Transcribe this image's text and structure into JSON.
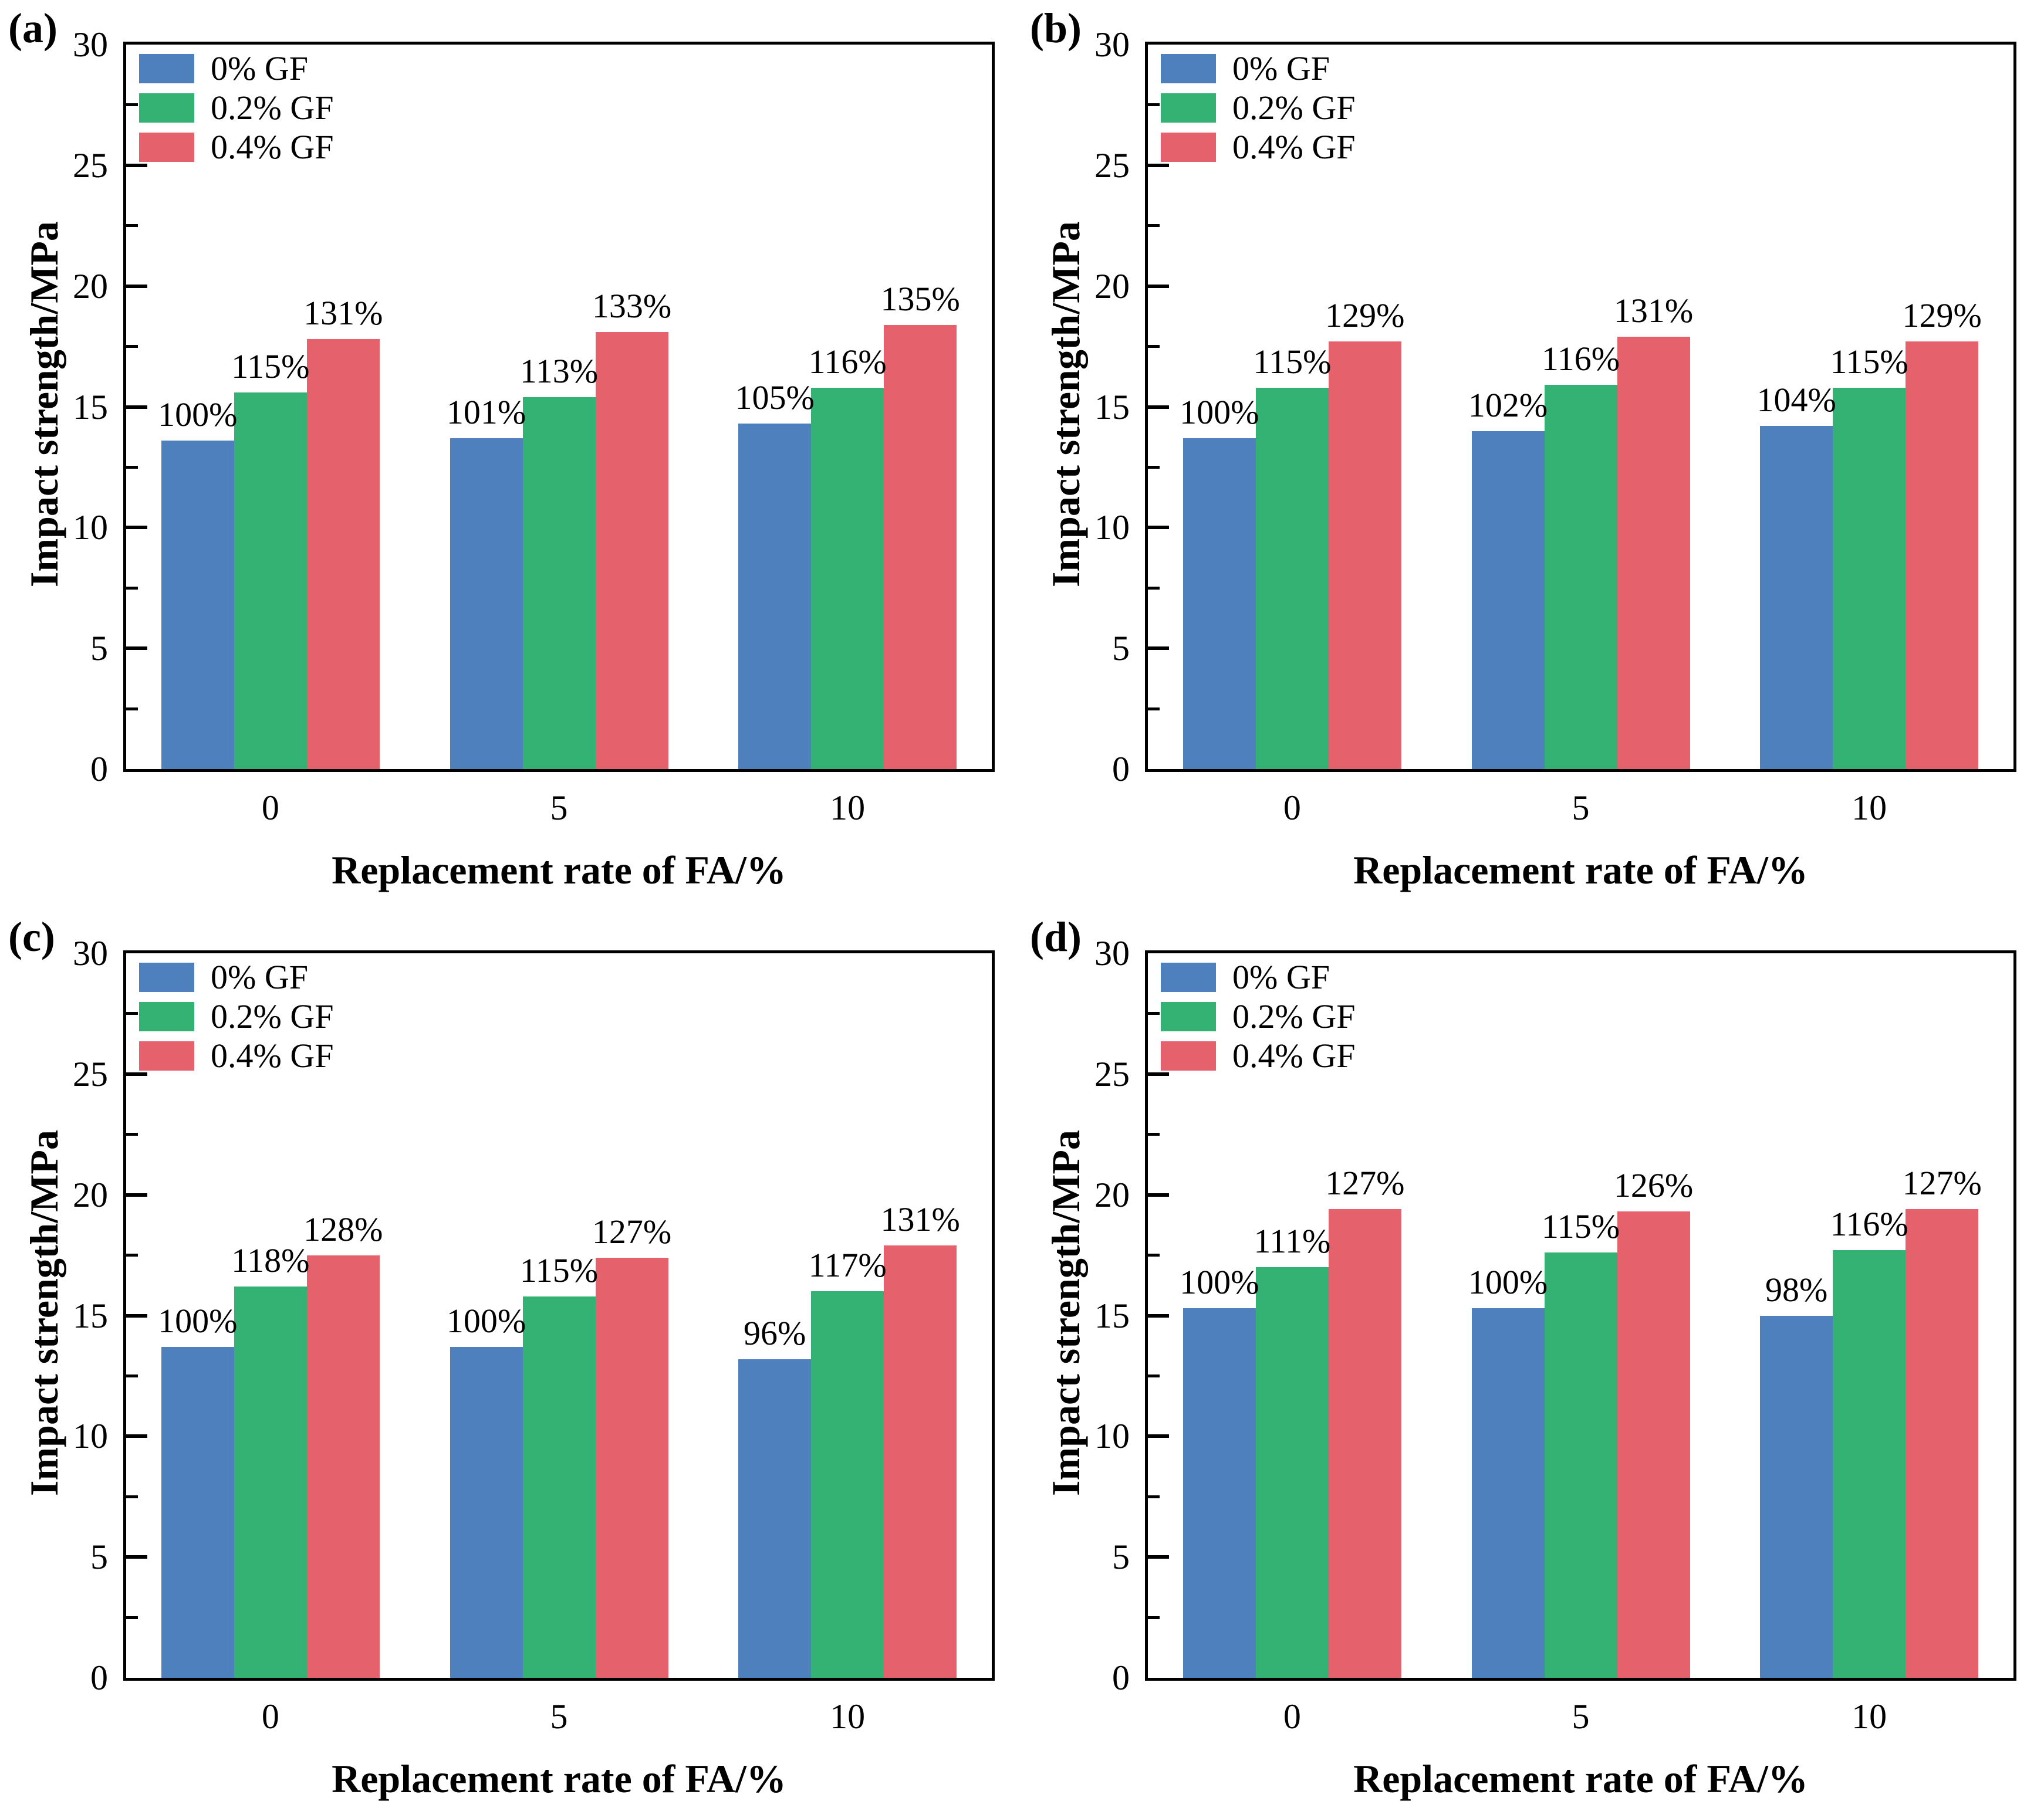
{
  "figure": {
    "background": "#ffffff",
    "axis_color": "#000000",
    "xlabel": "Replacement rate of FA/%",
    "ylabel": "Impact strength/MPa",
    "legend": [
      "0% GF",
      "0.2% GF",
      "0.4% GF"
    ],
    "series_colors": [
      "#4F80BE",
      "#34B273",
      "#E5616B"
    ],
    "legend_position": "top-left"
  },
  "chart_data": [
    {
      "type": "bar",
      "panel": "(a)",
      "xlabel": "Replacement rate of FA/%",
      "ylabel": "Impact strength/MPa",
      "categories": [
        "0",
        "5",
        "10"
      ],
      "ylim": [
        0,
        30
      ],
      "yticks": [
        0,
        5,
        10,
        15,
        20,
        25,
        30
      ],
      "minor_tick_interval": 2.5,
      "grid": false,
      "series": [
        {
          "name": "0% GF",
          "color": "#4F80BE",
          "values": [
            13.6,
            13.7,
            14.3
          ],
          "labels": [
            "100%",
            "101%",
            "105%"
          ]
        },
        {
          "name": "0.2% GF",
          "color": "#34B273",
          "values": [
            15.6,
            15.4,
            15.8
          ],
          "labels": [
            "115%",
            "113%",
            "116%"
          ]
        },
        {
          "name": "0.4% GF",
          "color": "#E5616B",
          "values": [
            17.8,
            18.1,
            18.4
          ],
          "labels": [
            "131%",
            "133%",
            "135%"
          ]
        }
      ]
    },
    {
      "type": "bar",
      "panel": "(b)",
      "xlabel": "Replacement rate of FA/%",
      "ylabel": "Impact strength/MPa",
      "categories": [
        "0",
        "5",
        "10"
      ],
      "ylim": [
        0,
        30
      ],
      "yticks": [
        0,
        5,
        10,
        15,
        20,
        25,
        30
      ],
      "minor_tick_interval": 2.5,
      "grid": false,
      "series": [
        {
          "name": "0% GF",
          "color": "#4F80BE",
          "values": [
            13.7,
            14.0,
            14.2
          ],
          "labels": [
            "100%",
            "102%",
            "104%"
          ]
        },
        {
          "name": "0.2% GF",
          "color": "#34B273",
          "values": [
            15.8,
            15.9,
            15.8
          ],
          "labels": [
            "115%",
            "116%",
            "115%"
          ]
        },
        {
          "name": "0.4% GF",
          "color": "#E5616B",
          "values": [
            17.7,
            17.9,
            17.7
          ],
          "labels": [
            "129%",
            "131%",
            "129%"
          ]
        }
      ]
    },
    {
      "type": "bar",
      "panel": "(c)",
      "xlabel": "Replacement rate of FA/%",
      "ylabel": "Impact strength/MPa",
      "categories": [
        "0",
        "5",
        "10"
      ],
      "ylim": [
        0,
        30
      ],
      "yticks": [
        0,
        5,
        10,
        15,
        20,
        25,
        30
      ],
      "minor_tick_interval": 2.5,
      "grid": false,
      "series": [
        {
          "name": "0% GF",
          "color": "#4F80BE",
          "values": [
            13.7,
            13.7,
            13.2
          ],
          "labels": [
            "100%",
            "100%",
            "96%"
          ]
        },
        {
          "name": "0.2% GF",
          "color": "#34B273",
          "values": [
            16.2,
            15.8,
            16.0
          ],
          "labels": [
            "118%",
            "115%",
            "117%"
          ]
        },
        {
          "name": "0.4% GF",
          "color": "#E5616B",
          "values": [
            17.5,
            17.4,
            17.9
          ],
          "labels": [
            "128%",
            "127%",
            "131%"
          ]
        }
      ]
    },
    {
      "type": "bar",
      "panel": "(d)",
      "xlabel": "Replacement rate of FA/%",
      "ylabel": "Impact strength/MPa",
      "categories": [
        "0",
        "5",
        "10"
      ],
      "ylim": [
        0,
        30
      ],
      "yticks": [
        0,
        5,
        10,
        15,
        20,
        25,
        30
      ],
      "minor_tick_interval": 2.5,
      "grid": false,
      "series": [
        {
          "name": "0% GF",
          "color": "#4F80BE",
          "values": [
            15.3,
            15.3,
            15.0
          ],
          "labels": [
            "100%",
            "100%",
            "98%"
          ]
        },
        {
          "name": "0.2% GF",
          "color": "#34B273",
          "values": [
            17.0,
            17.6,
            17.7
          ],
          "labels": [
            "111%",
            "115%",
            "116%"
          ]
        },
        {
          "name": "0.4% GF",
          "color": "#E5616B",
          "values": [
            19.4,
            19.3,
            19.4
          ],
          "labels": [
            "127%",
            "126%",
            "127%"
          ]
        }
      ]
    }
  ]
}
